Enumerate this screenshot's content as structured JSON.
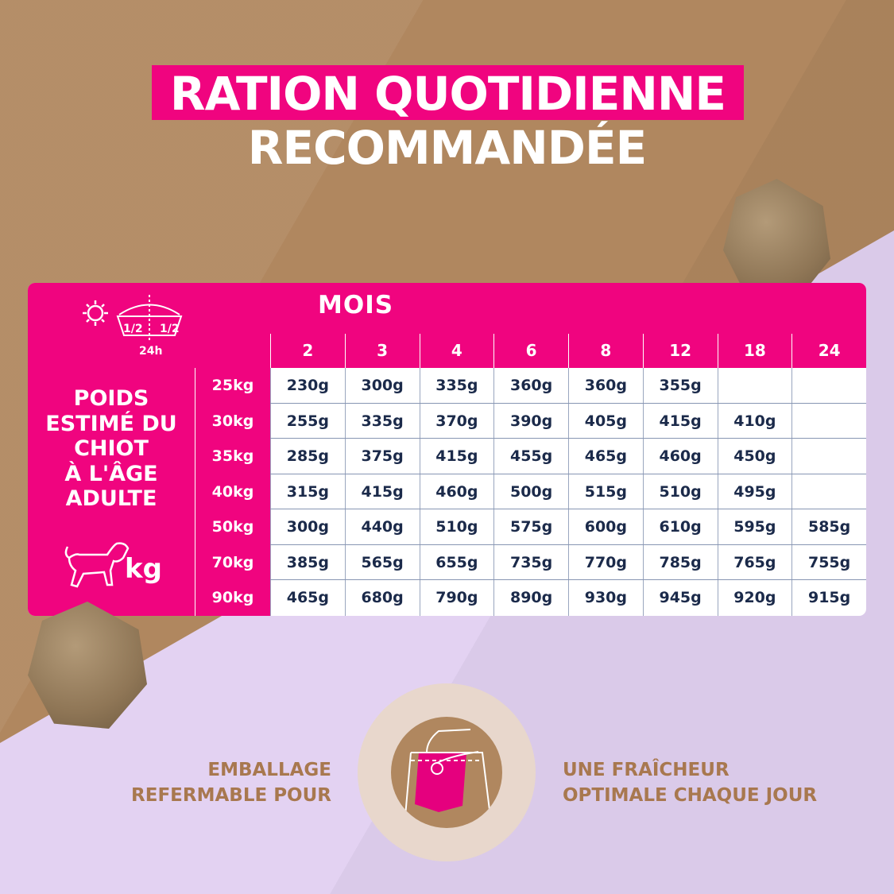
{
  "title": {
    "line1": "RATION QUOTIDIENNE",
    "line2": "RECOMMANDÉE"
  },
  "table": {
    "header_label": "MOIS",
    "feeding_icon": {
      "left": "1/2",
      "right": "1/2",
      "period": "24h"
    },
    "side_label": [
      "POIDS",
      "ESTIMÉ DU",
      "CHIOT",
      "À L'ÂGE",
      "ADULTE"
    ],
    "unit": "kg",
    "months": [
      "2",
      "3",
      "4",
      "6",
      "8",
      "12",
      "18",
      "24"
    ],
    "weights": [
      "25kg",
      "30kg",
      "35kg",
      "40kg",
      "50kg",
      "70kg",
      "90kg"
    ],
    "rows": [
      [
        "230g",
        "300g",
        "335g",
        "360g",
        "360g",
        "355g",
        "",
        ""
      ],
      [
        "255g",
        "335g",
        "370g",
        "390g",
        "405g",
        "415g",
        "410g",
        ""
      ],
      [
        "285g",
        "375g",
        "415g",
        "455g",
        "465g",
        "460g",
        "450g",
        ""
      ],
      [
        "315g",
        "415g",
        "460g",
        "500g",
        "515g",
        "510g",
        "495g",
        ""
      ],
      [
        "300g",
        "440g",
        "510g",
        "575g",
        "600g",
        "610g",
        "595g",
        "585g"
      ],
      [
        "385g",
        "565g",
        "655g",
        "735g",
        "770g",
        "785g",
        "765g",
        "755g"
      ],
      [
        "465g",
        "680g",
        "790g",
        "890g",
        "930g",
        "945g",
        "920g",
        "915g"
      ]
    ]
  },
  "footer": {
    "left": [
      "EMBALLAGE",
      "REFERMABLE POUR"
    ],
    "right": [
      "UNE FRAÎCHEUR",
      "OPTIMALE CHAQUE JOUR"
    ],
    "icon": "resealable-bag-icon"
  },
  "colors": {
    "pink": "#f0047f",
    "brown": "#b0875f",
    "lavender": "#e3d2f2",
    "text_dark": "#1b2a4a"
  }
}
